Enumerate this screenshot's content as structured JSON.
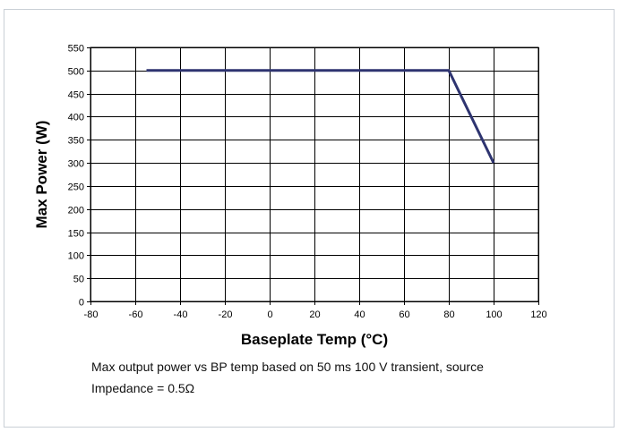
{
  "chart_data": {
    "type": "line",
    "title": "",
    "xlabel": "Baseplate Temp (°C)",
    "ylabel": "Max Power (W)",
    "xlim": [
      -80,
      120
    ],
    "ylim": [
      0,
      550
    ],
    "x_ticks": [
      "-80",
      "-60",
      "-40",
      "-20",
      "0",
      "20",
      "40",
      "60",
      "80",
      "100",
      "120"
    ],
    "y_ticks": [
      "0",
      "50",
      "100",
      "150",
      "200",
      "250",
      "300",
      "350",
      "400",
      "450",
      "500",
      "550"
    ],
    "grid": true,
    "legend": "none",
    "series": [
      {
        "x": [
          -55,
          80,
          100
        ],
        "y": [
          500,
          500,
          300
        ],
        "color": "#2e3470"
      }
    ]
  },
  "caption": {
    "line1": "Max output power vs BP temp based on 50 ms 100 V transient, source",
    "line2": "Impedance = 0.5Ω"
  }
}
